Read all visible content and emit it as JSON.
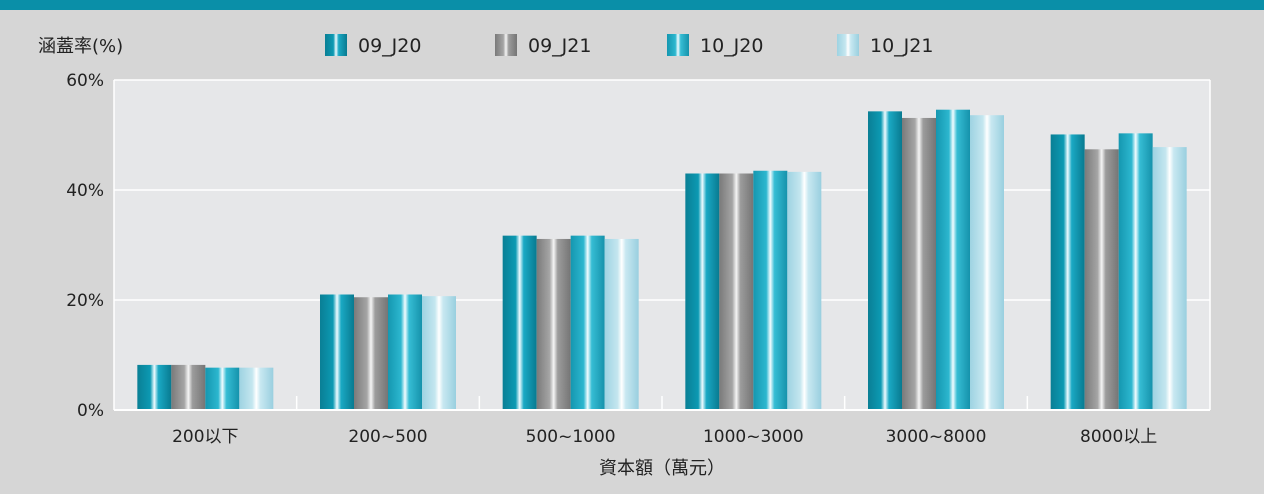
{
  "chart_data": {
    "type": "bar",
    "ylabel": "涵蓋率(%)",
    "xlabel": "資本額（萬元）",
    "ylim": [
      0,
      60
    ],
    "yticks": [
      0,
      20,
      40,
      60
    ],
    "ytick_labels": [
      "0%",
      "20%",
      "40%",
      "60%"
    ],
    "categories": [
      "200以下",
      "200~500",
      "500~1000",
      "1000~3000",
      "3000~8000",
      "8000以上"
    ],
    "series": [
      {
        "name": "09_J20",
        "values": [
          8.2,
          21.0,
          31.7,
          43.0,
          54.3,
          50.1
        ],
        "color": "#0e8fa6"
      },
      {
        "name": "09_J21",
        "values": [
          8.2,
          20.5,
          31.1,
          43.0,
          53.1,
          47.4
        ],
        "color": "#8c8c8c"
      },
      {
        "name": "10_J20",
        "values": [
          7.7,
          21.0,
          31.7,
          43.5,
          54.6,
          50.3
        ],
        "color": "#1ba6c0"
      },
      {
        "name": "10_J21",
        "values": [
          7.7,
          20.7,
          31.1,
          43.3,
          53.6,
          47.8
        ],
        "color": "#a6d8e6"
      }
    ],
    "grid": true,
    "legend_position": "top"
  }
}
